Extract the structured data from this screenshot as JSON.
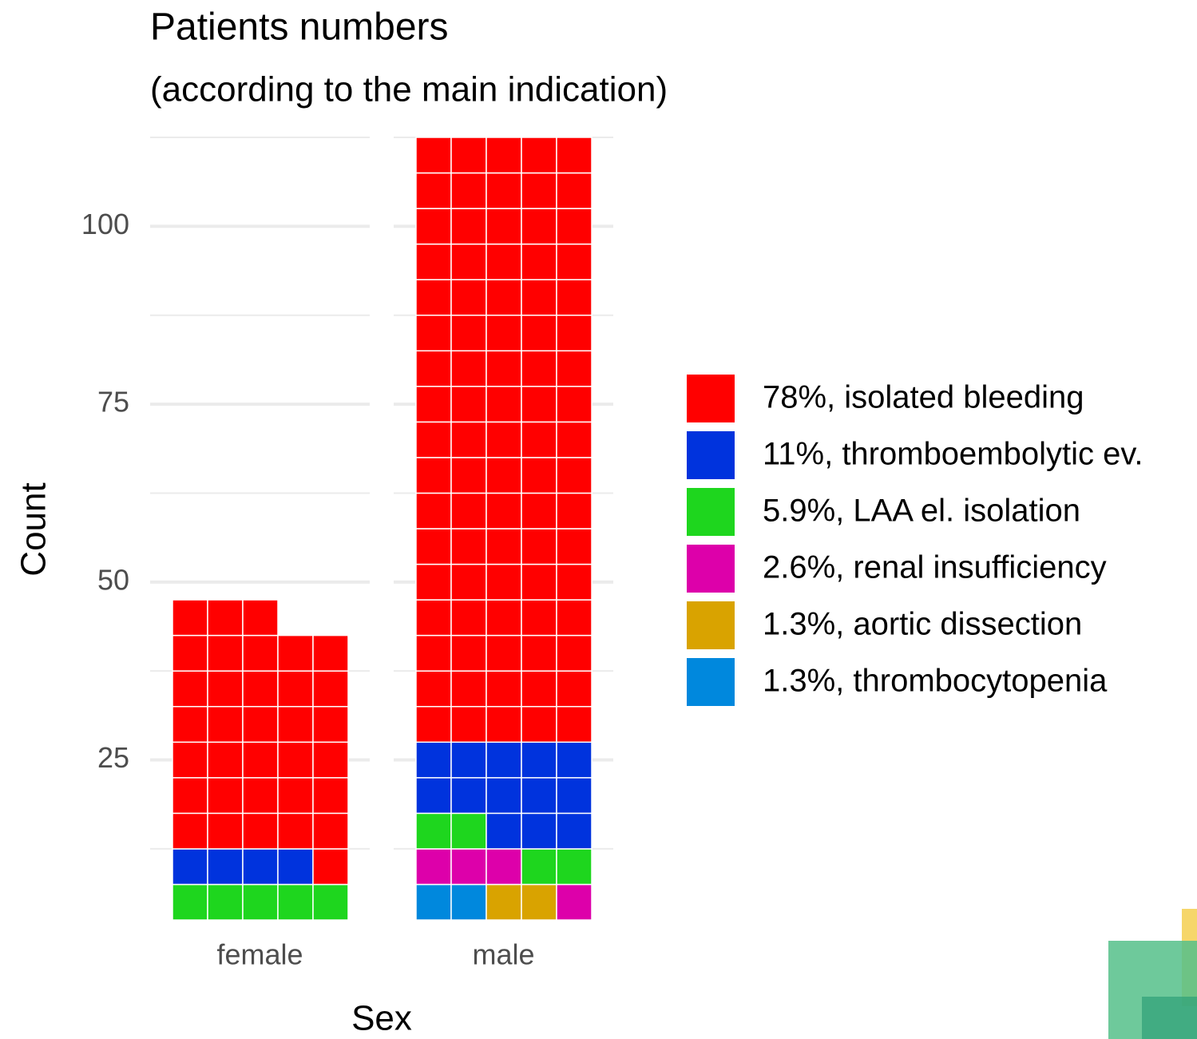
{
  "chart_data": {
    "type": "waffle",
    "title": "Patients numbers",
    "subtitle": "(according to the main indication)",
    "x_label": "Sex",
    "y_label": "Count",
    "categories": [
      "female",
      "male"
    ],
    "series": [
      {
        "name": "78%, isolated bleeding",
        "color": "#ff0000",
        "values": [
          34,
          85
        ]
      },
      {
        "name": "11%, thromboembolytic ev.",
        "color": "#0033dd",
        "values": [
          4,
          13
        ]
      },
      {
        "name": "5.9%, LAA el. isolation",
        "color": "#1ed61e",
        "values": [
          5,
          4
        ]
      },
      {
        "name": "2.6%, renal insufficiency",
        "color": "#dd00aa",
        "values": [
          0,
          4
        ]
      },
      {
        "name": "1.3%, aortic dissection",
        "color": "#d9a300",
        "values": [
          0,
          2
        ]
      },
      {
        "name": "1.3%, thrombocytopenia",
        "color": "#0088dd",
        "values": [
          0,
          2
        ]
      }
    ],
    "tiles_per_row": 5,
    "ylim": [
      2.5,
      112.5
    ],
    "yticks": [
      25,
      50,
      75,
      100
    ],
    "y_minor_ticks": [
      12.5,
      37.5,
      62.5,
      87.5,
      112.5
    ],
    "grid": true
  }
}
